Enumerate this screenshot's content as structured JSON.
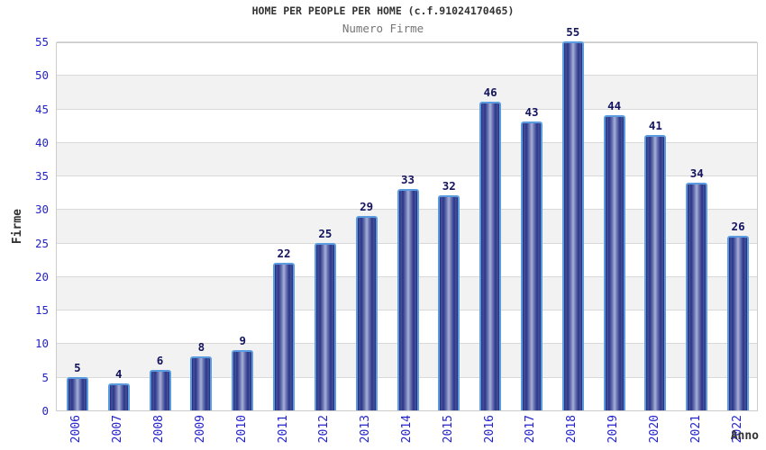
{
  "chart_data": {
    "type": "bar",
    "title": "HOME PER PEOPLE PER HOME (c.f.91024170465)",
    "subtitle": "Numero Firme",
    "categories": [
      "2006",
      "2007",
      "2008",
      "2009",
      "2010",
      "2011",
      "2012",
      "2013",
      "2014",
      "2015",
      "2016",
      "2017",
      "2018",
      "2019",
      "2020",
      "2021",
      "2022"
    ],
    "values": [
      5,
      4,
      6,
      8,
      9,
      22,
      25,
      29,
      33,
      32,
      46,
      43,
      55,
      44,
      41,
      34,
      26
    ],
    "xlabel": "Anno",
    "ylabel": "Firme",
    "ylim": [
      0,
      55
    ],
    "ytick_step": 5,
    "grid": true,
    "legend": false,
    "alternating_bands": true,
    "colors": {
      "bar_dark": "#1e2878",
      "bar_light": "#a9b1d6",
      "bar_border": "#5b9ce0",
      "tick_label": "#2323cc",
      "value_label": "#14145f",
      "title": "#333333",
      "subtitle": "#757575",
      "band": "#f2f2f2",
      "grid": "#d9d9d9",
      "axis_title": "#333333"
    }
  }
}
